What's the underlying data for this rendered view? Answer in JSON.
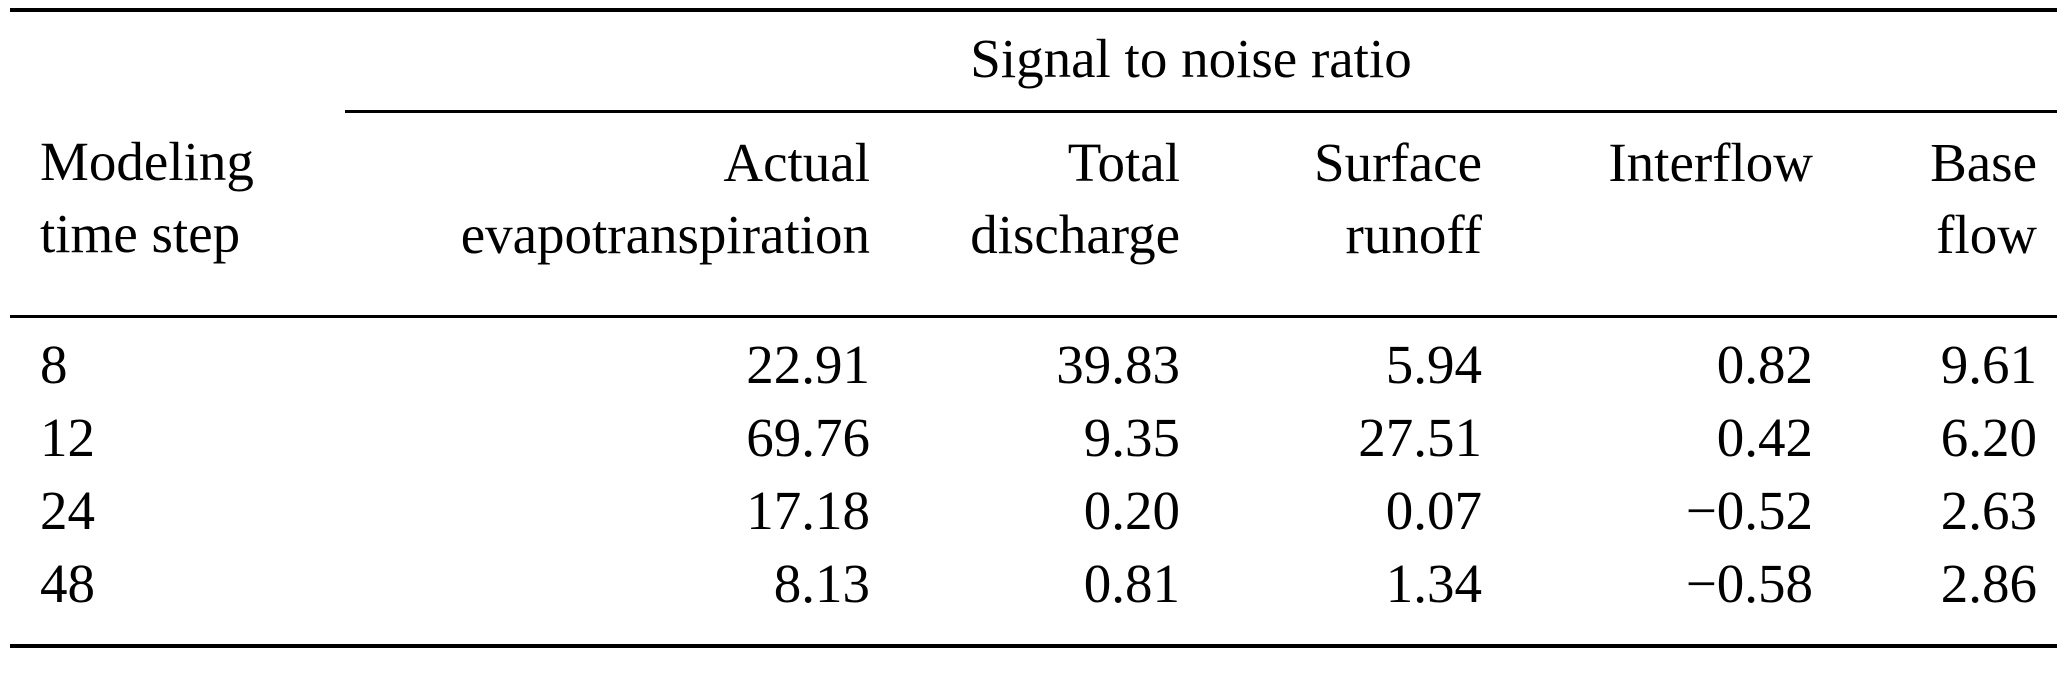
{
  "table": {
    "span_header": {
      "label": "Signal to noise ratio"
    },
    "columns": [
      {
        "label": "Modeling\ntime step"
      },
      {
        "label": "Actual\nevapotranspiration"
      },
      {
        "label": "Total\ndischarge"
      },
      {
        "label": "Surface\nrunoff"
      },
      {
        "label": "Interflow"
      },
      {
        "label": "Base\nflow"
      }
    ],
    "rows": [
      [
        "8",
        "22.91",
        "39.83",
        "5.94",
        "0.82",
        "9.61"
      ],
      [
        "12",
        "69.76",
        "9.35",
        "27.51",
        "0.42",
        "6.20"
      ],
      [
        "24",
        "17.18",
        "0.20",
        "0.07",
        "−0.52",
        "2.63"
      ],
      [
        "48",
        "8.13",
        "0.81",
        "1.34",
        "−0.58",
        "2.86"
      ]
    ]
  },
  "colors": {
    "text": "#000000",
    "background": "#ffffff",
    "rule": "#000000"
  }
}
